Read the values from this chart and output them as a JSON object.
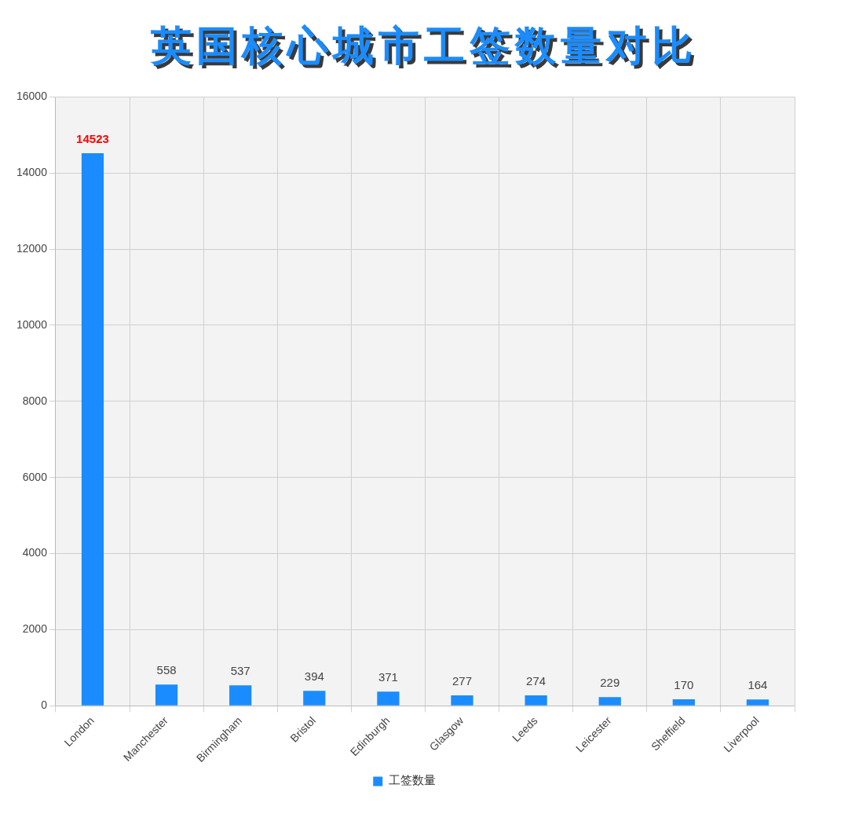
{
  "chart_data": {
    "type": "bar",
    "title": "英国核心城市工签数量对比",
    "categories": [
      "London",
      "Manchester",
      "Birmingham",
      "Bristol",
      "Edinburgh",
      "Glasgow",
      "Leeds",
      "Leicester",
      "Sheffield",
      "Liverpool"
    ],
    "series": [
      {
        "name": "工签数量",
        "color": "#1a8cff",
        "values": [
          14523,
          558,
          537,
          394,
          371,
          277,
          274,
          229,
          170,
          164
        ]
      }
    ],
    "ylim": [
      0,
      16000
    ],
    "yticks": [
      0,
      2000,
      4000,
      6000,
      8000,
      10000,
      12000,
      14000,
      16000
    ],
    "grid": true,
    "legend": "bottom",
    "data_labels": true
  }
}
